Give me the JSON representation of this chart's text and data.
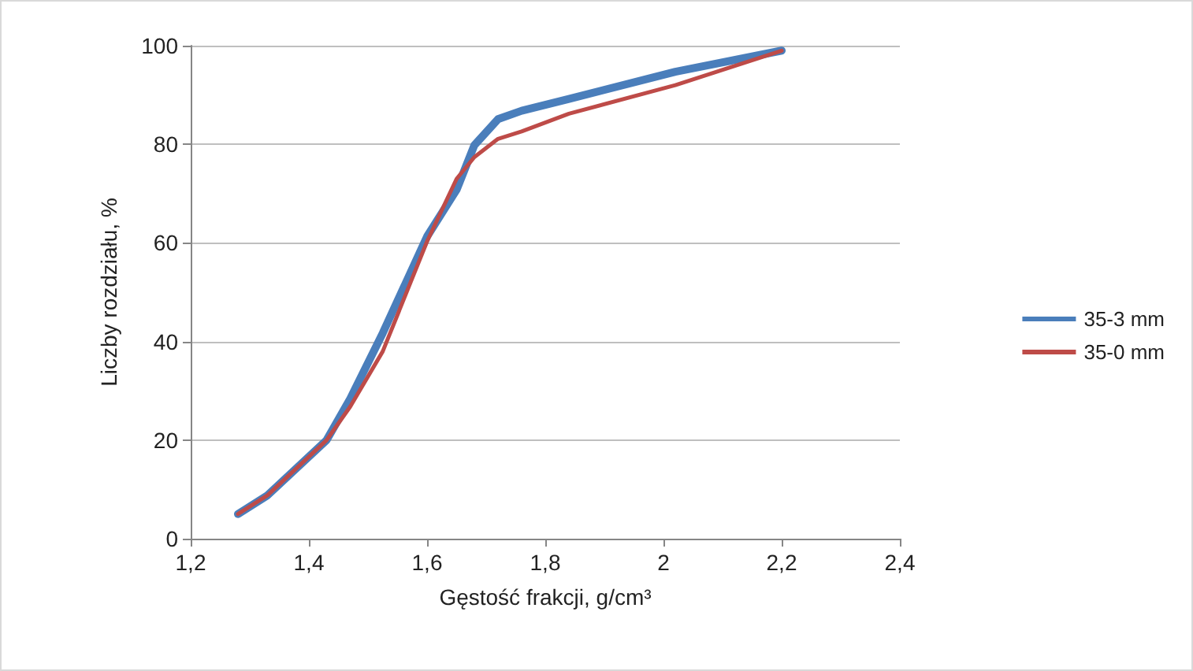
{
  "chart_data": {
    "type": "line",
    "xlabel": "Gęstość frakcji, g/cm³",
    "ylabel": "Liczby rozdziału, %",
    "xlim": [
      1.2,
      2.4
    ],
    "xticks": [
      {
        "value": 1.2,
        "label": "1,2"
      },
      {
        "value": 1.4,
        "label": "1,4"
      },
      {
        "value": 1.6,
        "label": "1,6"
      },
      {
        "value": 1.8,
        "label": "1,8"
      },
      {
        "value": 2,
        "label": "2"
      },
      {
        "value": 2.2,
        "label": "2,2"
      },
      {
        "value": 2.4,
        "label": "2,4"
      }
    ],
    "ylim": [
      0,
      100
    ],
    "yticks": [
      0,
      20,
      40,
      60,
      80,
      100
    ],
    "grid": "y",
    "legend": "right",
    "marker": "none",
    "line_style": "solid",
    "series": [
      {
        "name": "35-3 mm",
        "color": "#4a7ebb",
        "x": [
          1.28,
          1.33,
          1.43,
          1.47,
          1.525,
          1.6,
          1.65,
          1.68,
          1.72,
          1.76,
          1.84,
          2.02,
          2.2
        ],
        "values": [
          5,
          8.8,
          20,
          28.4,
          41.7,
          61.3,
          70.8,
          79.8,
          85.1,
          86.8,
          89.2,
          94.7,
          99
        ]
      },
      {
        "name": "35-0 mm",
        "color": "#be4b48",
        "x": [
          1.28,
          1.33,
          1.43,
          1.47,
          1.525,
          1.6,
          1.65,
          1.68,
          1.72,
          1.76,
          1.84,
          2.02,
          2.2
        ],
        "values": [
          5,
          8.8,
          20,
          26.8,
          38,
          60.3,
          73,
          77.4,
          81.1,
          82.6,
          86.2,
          92,
          99
        ]
      }
    ]
  }
}
